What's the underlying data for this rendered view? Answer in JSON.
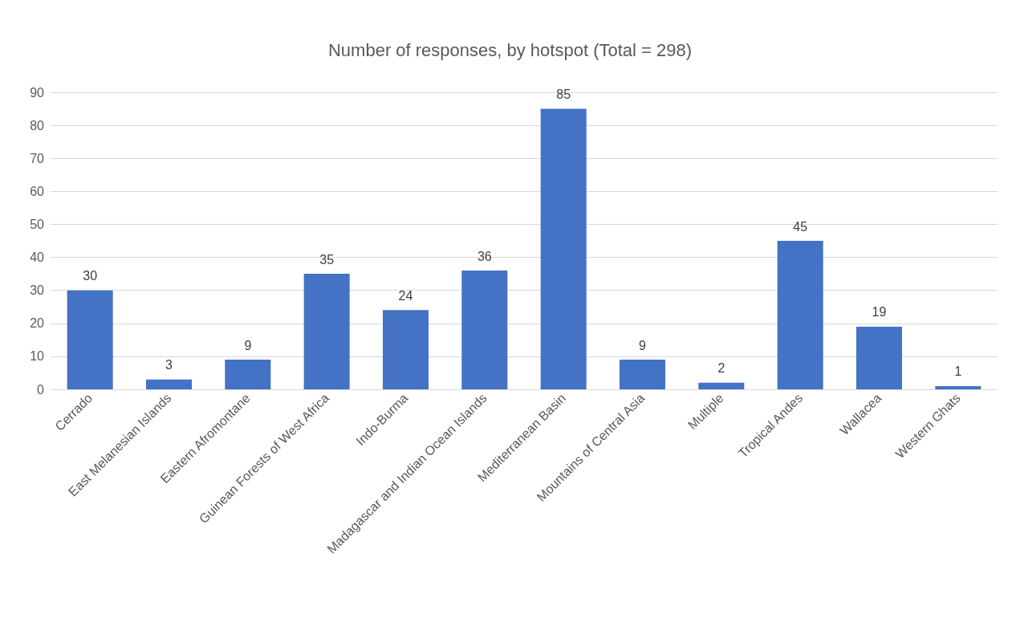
{
  "chart_data": {
    "type": "bar",
    "title": "Number of responses, by hotspot (Total = 298)",
    "categories": [
      "Cerrado",
      "East Melanesian Islands",
      "Eastern Afromontane",
      "Guinean Forests of West Africa",
      "Indo-Burma",
      "Madagascar and Indian Ocean Islands",
      "Mediterranean Basin",
      "Mountains of Central Asia",
      "Multiple",
      "Tropical Andes",
      "Wallacea",
      "Western Ghats"
    ],
    "values": [
      30,
      3,
      9,
      35,
      24,
      36,
      85,
      9,
      2,
      45,
      19,
      1
    ],
    "color": "#4472c4",
    "ylim": [
      0,
      90
    ],
    "yticks": [
      0,
      10,
      20,
      30,
      40,
      50,
      60,
      70,
      80,
      90
    ],
    "grid": "y",
    "data_labels": true
  }
}
